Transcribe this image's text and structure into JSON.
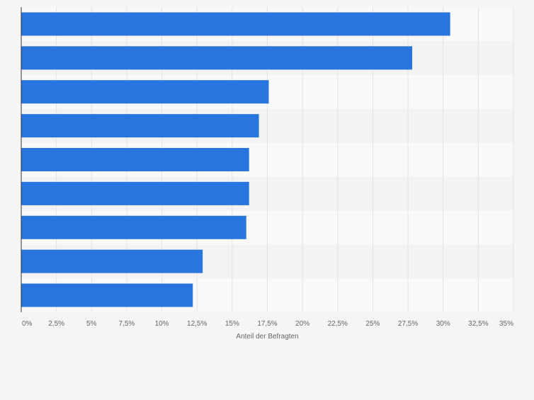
{
  "chart_data": {
    "type": "bar",
    "orientation": "horizontal",
    "categories": [
      "",
      "",
      "",
      "",
      "",
      "",
      "",
      "",
      ""
    ],
    "values": [
      30.5,
      27.8,
      17.6,
      16.9,
      16.2,
      16.2,
      16.0,
      12.9,
      12.2
    ],
    "xlabel": "Anteil der Befragten",
    "ylabel": "",
    "xlim": [
      0,
      35
    ],
    "x_ticks": [
      "0%",
      "2,5%",
      "5%",
      "7,5%",
      "10%",
      "12,5%",
      "15%",
      "17,5%",
      "20%",
      "22,5%",
      "25%",
      "27,5%",
      "30%",
      "32,5%",
      "35%"
    ],
    "grid": true,
    "colors": {
      "bar": "#2876dd",
      "band_light": "#f9f9f9",
      "band_dark": "#f3f3f3",
      "grid": "#e2e2e2",
      "axis": "#333333",
      "tick_text": "#666666"
    }
  }
}
